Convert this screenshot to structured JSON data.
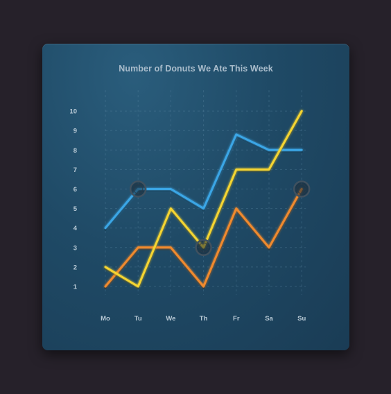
{
  "chart_data": {
    "type": "line",
    "title": "Number of Donuts We Ate This Week",
    "xlabel": "",
    "ylabel": "",
    "categories": [
      "Mo",
      "Tu",
      "We",
      "Th",
      "Fr",
      "Sa",
      "Su"
    ],
    "yticks": [
      "1",
      "2",
      "3",
      "4",
      "5",
      "6",
      "7",
      "8",
      "9",
      "10"
    ],
    "ylim": [
      1,
      10
    ],
    "grid": true,
    "series": [
      {
        "color": "#3aa6e6",
        "values": [
          4,
          6,
          6,
          5,
          8.8,
          8,
          8
        ]
      },
      {
        "color": "#f5d531",
        "values": [
          2,
          1,
          5,
          3,
          7,
          7,
          10
        ]
      },
      {
        "color": "#f08a2e",
        "values": [
          1,
          3,
          3,
          1,
          5,
          3,
          6
        ]
      }
    ],
    "highlights": [
      {
        "series": 0,
        "index": 1
      },
      {
        "series": 1,
        "index": 3
      },
      {
        "series": 2,
        "index": 6
      }
    ]
  }
}
